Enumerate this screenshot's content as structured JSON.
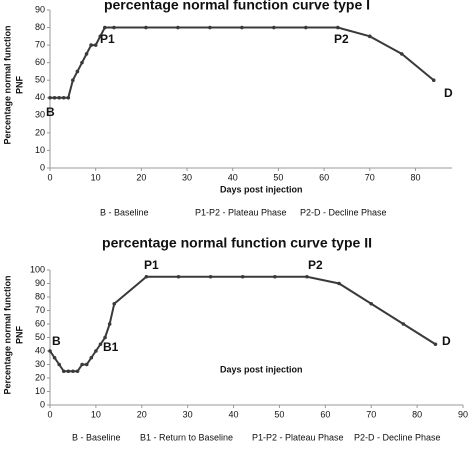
{
  "chart_data": [
    {
      "type": "line",
      "title": "percentage normal function curve type I",
      "y_label": [
        "Percentage normal function",
        "PNF"
      ],
      "x_label": "Days post injection",
      "x": [
        0,
        1,
        2,
        3,
        4,
        5,
        6,
        7,
        8,
        9,
        10,
        11,
        12,
        14,
        21,
        28,
        35,
        42,
        49,
        56,
        63,
        70,
        77,
        84
      ],
      "series": [
        {
          "color": "#3a3a3a",
          "values": [
            40,
            40,
            40,
            40,
            40,
            50,
            55,
            60,
            65,
            70,
            70,
            75,
            80,
            80,
            80,
            80,
            80,
            80,
            80,
            80,
            80,
            75,
            65,
            50
          ]
        }
      ],
      "xlim": [
        0,
        88
      ],
      "xticks": [
        0,
        10,
        20,
        30,
        40,
        50,
        60,
        70,
        80
      ],
      "ylim": [
        0,
        90
      ],
      "yticks": [
        0,
        10,
        20,
        30,
        40,
        50,
        60,
        70,
        80,
        90
      ],
      "annotations": [
        "B",
        "P1",
        "P2",
        "D"
      ],
      "notes": [
        "B - Baseline",
        "P1-P2 - Plateau Phase",
        "P2-D - Decline Phase"
      ]
    },
    {
      "type": "line",
      "title": "percentage normal function curve type II",
      "y_label": [
        "Percentage normal function",
        "PNF"
      ],
      "x_label": "Days post injection",
      "x": [
        0,
        1,
        2,
        3,
        4,
        5,
        6,
        7,
        8,
        9,
        10,
        11,
        12,
        13,
        14,
        21,
        28,
        35,
        42,
        49,
        56,
        63,
        70,
        77,
        84
      ],
      "series": [
        {
          "color": "#3a3a3a",
          "values": [
            40,
            35,
            30,
            25,
            25,
            25,
            25,
            30,
            30,
            35,
            40,
            45,
            50,
            60,
            75,
            95,
            95,
            95,
            95,
            95,
            95,
            90,
            75,
            60,
            45
          ]
        }
      ],
      "xlim": [
        0,
        90
      ],
      "xticks": [
        0,
        10,
        20,
        30,
        40,
        50,
        60,
        70,
        80,
        90
      ],
      "ylim": [
        0,
        100
      ],
      "yticks": [
        0,
        10,
        20,
        30,
        40,
        50,
        60,
        70,
        80,
        90,
        100
      ],
      "annotations": [
        "B",
        "B1",
        "P1",
        "P2",
        "D"
      ],
      "notes": [
        "B - Baseline",
        "B1 - Return to Baseline",
        "P1-P2 - Plateau Phase",
        "P2-D - Decline Phase"
      ]
    }
  ]
}
